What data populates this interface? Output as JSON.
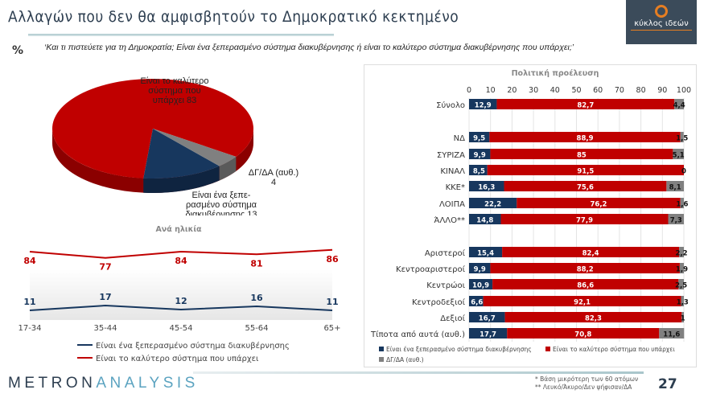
{
  "header": {
    "title": "Αλλαγών που δεν θα αμφισβητούν το Δημοκρατικό κεκτημένο",
    "logo_text": "κύκλος ιδεών",
    "percent_symbol": "%",
    "question": "‘Και τι πιστεύετε για τη Δημοκρατία; Είναι ένα ξεπερασμένο σύστημα διακυβέρνησης ή είναι το καλύτερο σύστημα διακυβέρνησης που υπάρχει;’"
  },
  "colors": {
    "outdated": "#17375e",
    "best": "#c00000",
    "dk": "#808080"
  },
  "chart_data": [
    {
      "type": "pie",
      "slices": [
        {
          "label": "Είναι το καλύτερο σύστημα που υπάρχει",
          "value": 83
        },
        {
          "label": "Είναι ένα ξεπερασμένο σύστημα διακυβέρνησης",
          "value": 13
        },
        {
          "label": "ΔΓ/ΔΑ (αυθ.)",
          "value": 4
        }
      ],
      "data_labels": [
        "Είναι το καλύτερο σύστημα που υπάρχει 83",
        "Είναι ένα ξεπε-ρασμένο σύστημα διακυβέρνησης 13",
        "ΔΓ/ΔΑ (αυθ.) 4"
      ]
    },
    {
      "type": "line",
      "title": "Ανά ηλικία",
      "categories": [
        "17-34",
        "35-44",
        "45-54",
        "55-64",
        "65+"
      ],
      "series": [
        {
          "name": "Είναι ένα ξεπερασμένο σύστημα διακυβέρνησης",
          "values": [
            11,
            17,
            12,
            16,
            11
          ]
        },
        {
          "name": "Είναι το καλύτερο σύστημα που υπάρχει",
          "values": [
            84,
            77,
            84,
            81,
            86
          ]
        }
      ]
    },
    {
      "type": "bar",
      "stacked": true,
      "orientation": "horizontal",
      "title": "Πολιτική προέλευση",
      "xlim": [
        0,
        100
      ],
      "ticks": [
        "0",
        "10",
        "20",
        "30",
        "40",
        "50",
        "60",
        "70",
        "80",
        "90",
        "100"
      ],
      "categories": [
        "Σύνολο",
        "",
        "ΝΔ",
        "ΣΥΡΙΖΑ",
        "ΚΙΝΑΛ",
        "ΚΚΕ*",
        "ΛΟΙΠΑ",
        "ΆΛΛΟ**",
        "",
        "Αριστεροί",
        "Κεντροαριστεροί",
        "Κεντρώοι",
        "Κεντροδεξιοί",
        "Δεξιοί",
        "Τίποτα από αυτά (αυθ.)"
      ],
      "series": [
        {
          "name": "Είναι ένα ξεπερασμένο σύστημα διακυβέρνησης",
          "values": [
            12.9,
            null,
            9.5,
            9.9,
            8.5,
            16.3,
            22.2,
            14.8,
            null,
            15.4,
            9.9,
            10.9,
            6.6,
            16.7,
            17.7
          ],
          "labels": [
            "12,9",
            "",
            "9,5",
            "9,9",
            "8,5",
            "16,3",
            "22,2",
            "14,8",
            "",
            "15,4",
            "9,9",
            "10,9",
            "6,6",
            "16,7",
            "17,7"
          ]
        },
        {
          "name": "Είναι το καλύτερο σύστημα που υπάρχει",
          "values": [
            82.7,
            null,
            88.9,
            85,
            91.5,
            75.6,
            76.2,
            77.9,
            null,
            82.4,
            88.2,
            86.6,
            92.1,
            82.3,
            70.8
          ],
          "labels": [
            "82,7",
            "",
            "88,9",
            "85",
            "91,5",
            "75,6",
            "76,2",
            "77,9",
            "",
            "82,4",
            "88,2",
            "86,6",
            "92,1",
            "82,3",
            "70,8"
          ]
        },
        {
          "name": "ΔΓ/ΔΑ (αυθ.)",
          "values": [
            4.4,
            null,
            1.5,
            5.1,
            0,
            8.1,
            1.6,
            7.3,
            null,
            2.2,
            1.9,
            2.5,
            1.3,
            1,
            11.6
          ],
          "labels": [
            "4,4",
            "",
            "1,5",
            "5,1",
            "0",
            "8,1",
            "1,6",
            "7,3",
            "",
            "2,2",
            "1,9",
            "2,5",
            "1,3",
            "1",
            "11,6"
          ]
        }
      ],
      "legend": "bottom"
    }
  ],
  "footer": {
    "brand_a": "METRON",
    "brand_b": "ANALYSIS",
    "footnote1": "*  Βάση μικρότερη των 60 ατόμων",
    "footnote2": "** Λευκό/Άκυρο/Δεν ψήφισαν/ΔΑ",
    "page": "27"
  }
}
